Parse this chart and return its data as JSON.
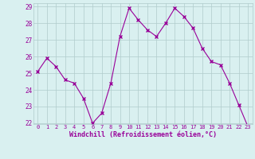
{
  "x": [
    0,
    1,
    2,
    3,
    4,
    5,
    6,
    7,
    8,
    9,
    10,
    11,
    12,
    13,
    14,
    15,
    16,
    17,
    18,
    19,
    20,
    21,
    22,
    23
  ],
  "y": [
    25.1,
    25.9,
    25.4,
    24.6,
    24.4,
    23.5,
    22.0,
    22.6,
    24.4,
    27.2,
    28.9,
    28.2,
    27.6,
    27.2,
    28.0,
    28.9,
    28.4,
    27.7,
    26.5,
    25.7,
    25.5,
    24.4,
    23.1,
    21.8
  ],
  "line_color": "#990099",
  "marker": "x",
  "marker_size": 3,
  "bg_color": "#d9f0f0",
  "grid_color": "#b0cccc",
  "xlabel": "Windchill (Refroidissement éolien,°C)",
  "xlabel_color": "#990099",
  "tick_color": "#990099",
  "ylim": [
    22,
    29
  ],
  "xlim": [
    -0.5,
    23.5
  ],
  "yticks": [
    22,
    23,
    24,
    25,
    26,
    27,
    28,
    29
  ],
  "xticks": [
    0,
    1,
    2,
    3,
    4,
    5,
    6,
    7,
    8,
    9,
    10,
    11,
    12,
    13,
    14,
    15,
    16,
    17,
    18,
    19,
    20,
    21,
    22,
    23
  ]
}
